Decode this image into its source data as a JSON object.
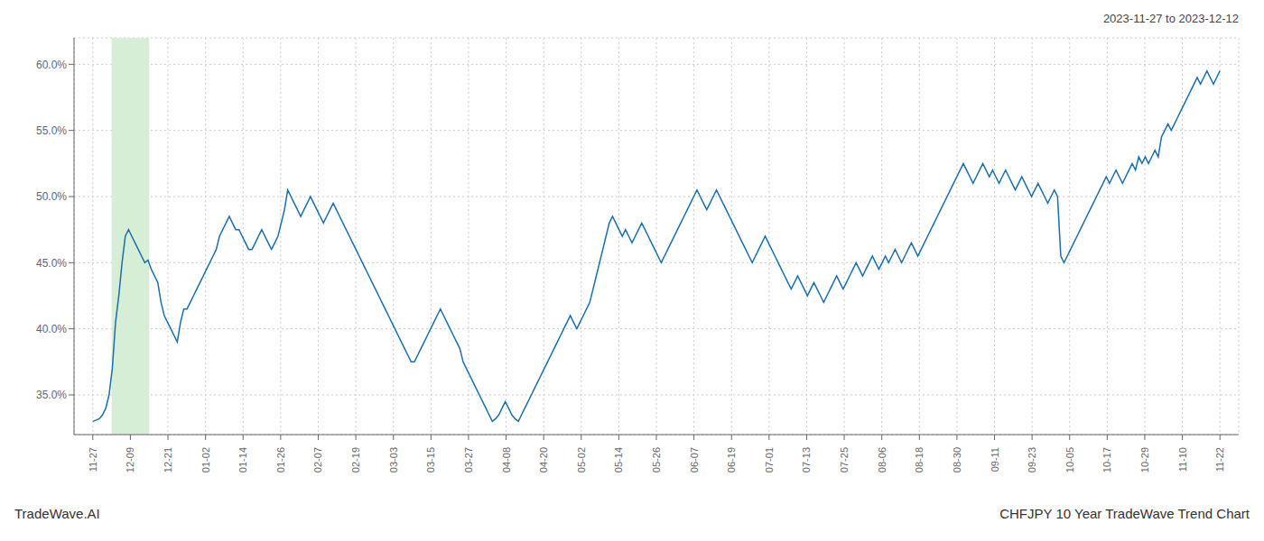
{
  "chart_data": {
    "type": "line",
    "title": "CHFJPY 10 Year TradeWave Trend Chart",
    "subtitle": "2023-11-27 to 2023-12-12",
    "annotations": [
      "TradeWave.AI"
    ],
    "color": "#1a6fad",
    "grid": true,
    "bands": [
      {
        "xlim": [
          0.5,
          1.5
        ],
        "color": "#d6edd6"
      }
    ],
    "xlim": [
      -0.5,
      30.5
    ],
    "xticks": [
      {
        "value": 0,
        "label": "11-27"
      },
      {
        "value": 1,
        "label": "12-09"
      },
      {
        "value": 2,
        "label": "12-21"
      },
      {
        "value": 3,
        "label": "01-02"
      },
      {
        "value": 4,
        "label": "01-14"
      },
      {
        "value": 5,
        "label": "01-26"
      },
      {
        "value": 6,
        "label": "02-07"
      },
      {
        "value": 7,
        "label": "02-19"
      },
      {
        "value": 8,
        "label": "03-03"
      },
      {
        "value": 9,
        "label": "03-15"
      },
      {
        "value": 10,
        "label": "03-27"
      },
      {
        "value": 11,
        "label": "04-08"
      },
      {
        "value": 12,
        "label": "04-20"
      },
      {
        "value": 13,
        "label": "05-02"
      },
      {
        "value": 14,
        "label": "05-14"
      },
      {
        "value": 15,
        "label": "05-26"
      },
      {
        "value": 16,
        "label": "06-07"
      },
      {
        "value": 17,
        "label": "06-19"
      },
      {
        "value": 18,
        "label": "07-01"
      },
      {
        "value": 19,
        "label": "07-13"
      },
      {
        "value": 20,
        "label": "07-25"
      },
      {
        "value": 21,
        "label": "08-06"
      },
      {
        "value": 22,
        "label": "08-18"
      },
      {
        "value": 23,
        "label": "08-30"
      },
      {
        "value": 24,
        "label": "09-11"
      },
      {
        "value": 25,
        "label": "09-23"
      },
      {
        "value": 26,
        "label": "10-05"
      },
      {
        "value": 27,
        "label": "10-17"
      },
      {
        "value": 28,
        "label": "10-29"
      },
      {
        "value": 29,
        "label": "11-10"
      },
      {
        "value": 30,
        "label": "11-22"
      }
    ],
    "ylim": [
      32.0,
      62.0
    ],
    "yticks": [
      {
        "value": 35.0,
        "label": "35.0%"
      },
      {
        "value": 40.0,
        "label": "40.0%"
      },
      {
        "value": 45.0,
        "label": "45.0%"
      },
      {
        "value": 50.0,
        "label": "50.0%"
      },
      {
        "value": 55.0,
        "label": "55.0%"
      },
      {
        "value": 60.0,
        "label": "60.0%"
      }
    ],
    "values": [
      33.0,
      33.1,
      33.2,
      33.5,
      34.0,
      35.0,
      37.0,
      40.5,
      42.5,
      45.0,
      47.0,
      47.5,
      47.0,
      46.5,
      46.0,
      45.5,
      45.0,
      45.2,
      44.5,
      44.0,
      43.5,
      42.0,
      41.0,
      40.5,
      40.0,
      39.5,
      39.0,
      40.5,
      41.5,
      41.5,
      42.0,
      42.5,
      43.0,
      43.5,
      44.0,
      44.5,
      45.0,
      45.5,
      46.0,
      47.0,
      47.5,
      48.0,
      48.5,
      48.0,
      47.5,
      47.5,
      47.0,
      46.5,
      46.0,
      46.0,
      46.5,
      47.0,
      47.5,
      47.0,
      46.5,
      46.0,
      46.5,
      47.0,
      48.0,
      49.0,
      50.5,
      50.0,
      49.5,
      49.0,
      48.5,
      49.0,
      49.5,
      50.0,
      49.5,
      49.0,
      48.5,
      48.0,
      48.5,
      49.0,
      49.5,
      49.0,
      48.5,
      48.0,
      47.5,
      47.0,
      46.5,
      46.0,
      45.5,
      45.0,
      44.5,
      44.0,
      43.5,
      43.0,
      42.5,
      42.0,
      41.5,
      41.0,
      40.5,
      40.0,
      39.5,
      39.0,
      38.5,
      38.0,
      37.5,
      37.5,
      38.0,
      38.5,
      39.0,
      39.5,
      40.0,
      40.5,
      41.0,
      41.5,
      41.0,
      40.5,
      40.0,
      39.5,
      39.0,
      38.5,
      37.5,
      37.0,
      36.5,
      36.0,
      35.5,
      35.0,
      34.5,
      34.0,
      33.5,
      33.0,
      33.2,
      33.5,
      34.0,
      34.5,
      34.0,
      33.5,
      33.2,
      33.0,
      33.5,
      34.0,
      34.5,
      35.0,
      35.5,
      36.0,
      36.5,
      37.0,
      37.5,
      38.0,
      38.5,
      39.0,
      39.5,
      40.0,
      40.5,
      41.0,
      40.5,
      40.0,
      40.5,
      41.0,
      41.5,
      42.0,
      43.0,
      44.0,
      45.0,
      46.0,
      47.0,
      48.0,
      48.5,
      48.0,
      47.5,
      47.0,
      47.5,
      47.0,
      46.5,
      47.0,
      47.5,
      48.0,
      47.5,
      47.0,
      46.5,
      46.0,
      45.5,
      45.0,
      45.5,
      46.0,
      46.5,
      47.0,
      47.5,
      48.0,
      48.5,
      49.0,
      49.5,
      50.0,
      50.5,
      50.0,
      49.5,
      49.0,
      49.5,
      50.0,
      50.5,
      50.0,
      49.5,
      49.0,
      48.5,
      48.0,
      47.5,
      47.0,
      46.5,
      46.0,
      45.5,
      45.0,
      45.5,
      46.0,
      46.5,
      47.0,
      46.5,
      46.0,
      45.5,
      45.0,
      44.5,
      44.0,
      43.5,
      43.0,
      43.5,
      44.0,
      43.5,
      43.0,
      42.5,
      43.0,
      43.5,
      43.0,
      42.5,
      42.0,
      42.5,
      43.0,
      43.5,
      44.0,
      43.5,
      43.0,
      43.5,
      44.0,
      44.5,
      45.0,
      44.5,
      44.0,
      44.5,
      45.0,
      45.5,
      45.0,
      44.5,
      45.0,
      45.5,
      45.0,
      45.5,
      46.0,
      45.5,
      45.0,
      45.5,
      46.0,
      46.5,
      46.0,
      45.5,
      46.0,
      46.5,
      47.0,
      47.5,
      48.0,
      48.5,
      49.0,
      49.5,
      50.0,
      50.5,
      51.0,
      51.5,
      52.0,
      52.5,
      52.0,
      51.5,
      51.0,
      51.5,
      52.0,
      52.5,
      52.0,
      51.5,
      52.0,
      51.5,
      51.0,
      51.5,
      52.0,
      51.5,
      51.0,
      50.5,
      51.0,
      51.5,
      51.0,
      50.5,
      50.0,
      50.5,
      51.0,
      50.5,
      50.0,
      49.5,
      50.0,
      50.5,
      50.0,
      45.5,
      45.0,
      45.5,
      46.0,
      46.5,
      47.0,
      47.5,
      48.0,
      48.5,
      49.0,
      49.5,
      50.0,
      50.5,
      51.0,
      51.5,
      51.0,
      51.5,
      52.0,
      51.5,
      51.0,
      51.5,
      52.0,
      52.5,
      52.0,
      53.0,
      52.5,
      53.0,
      52.5,
      53.0,
      53.5,
      53.0,
      54.5,
      55.0,
      55.5,
      55.0,
      55.5,
      56.0,
      56.5,
      57.0,
      57.5,
      58.0,
      58.5,
      59.0,
      58.5,
      59.0,
      59.5,
      59.0,
      58.5,
      59.0,
      59.5
    ]
  }
}
